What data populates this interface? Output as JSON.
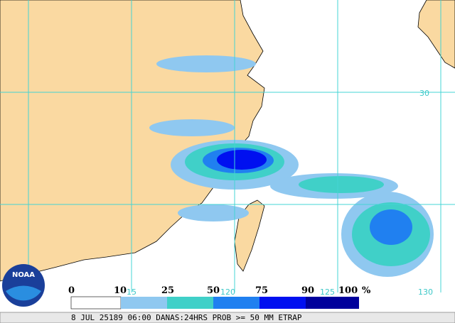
{
  "legend": {
    "labels": [
      "0",
      "10",
      "25",
      "50",
      "75",
      "90",
      "100"
    ],
    "unit": "%"
  },
  "grid_labels": {
    "lat": [
      "30"
    ],
    "lon": [
      "15",
      "120",
      "125",
      "130"
    ]
  },
  "footer": "8 JUL 25189 06:00 DANAS:24HRS PROB >= 50 MM ETRAP",
  "logo": "NOAA"
}
